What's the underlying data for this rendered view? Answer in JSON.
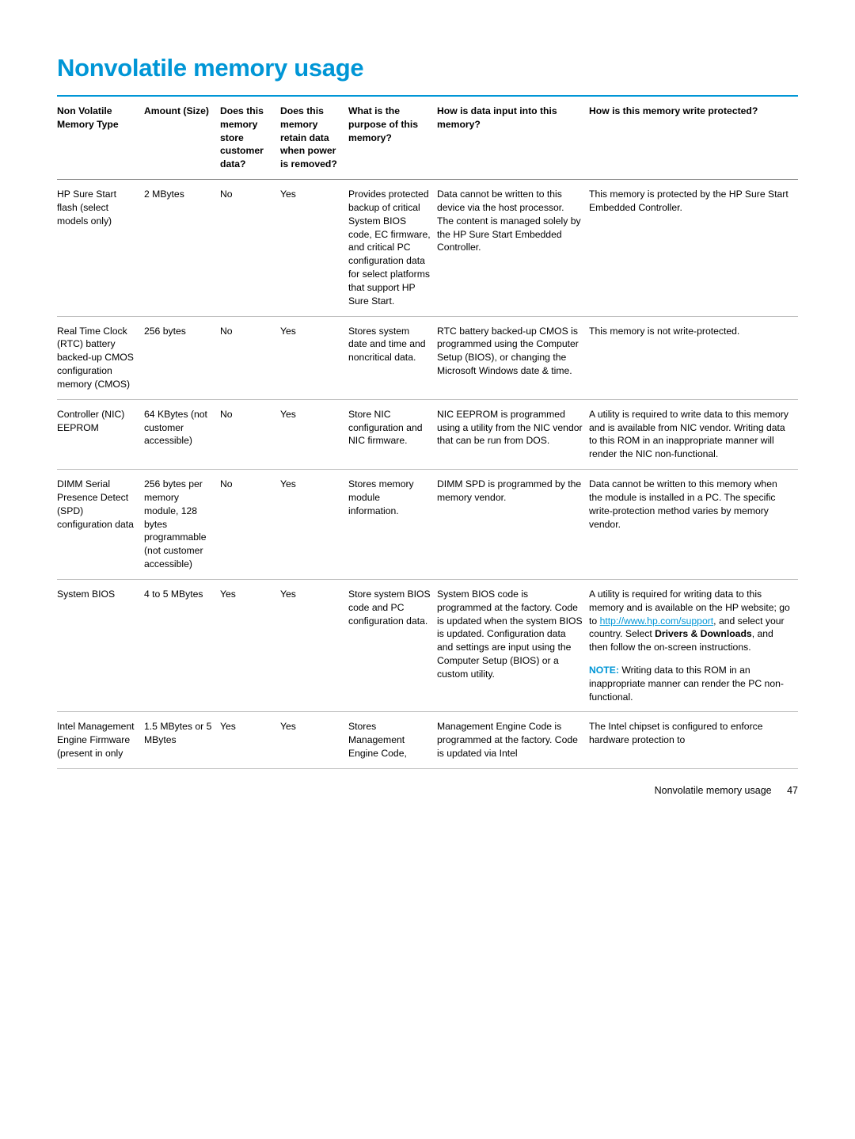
{
  "page": {
    "title": "Nonvolatile memory usage",
    "footer_section": "Nonvolatile memory usage",
    "footer_page": "47"
  },
  "table": {
    "headers": {
      "c1": "Non Volatile Memory Type",
      "c2": "Amount (Size)",
      "c3": "Does this memory store customer data?",
      "c4": "Does this memory retain data when power is removed?",
      "c5": "What is the purpose of this memory?",
      "c6": "How is data input into this memory?",
      "c7": "How is this memory write protected?"
    },
    "rows": [
      {
        "c1": "HP Sure Start flash (select models only)",
        "c2": "2 MBytes",
        "c3": "No",
        "c4": "Yes",
        "c5": "Provides protected backup of critical System BIOS code, EC firmware, and critical PC configuration data for select platforms that support HP Sure Start.",
        "c6": "Data cannot be written to this device via the host processor. The content is managed solely by the HP Sure Start Embedded Controller.",
        "c7": "This memory is protected by the HP Sure Start Embedded Controller."
      },
      {
        "c1": "Real Time Clock (RTC) battery backed-up CMOS configuration memory (CMOS)",
        "c2": "256 bytes",
        "c3": "No",
        "c4": "Yes",
        "c5": "Stores system date and time and noncritical data.",
        "c6": "RTC battery backed-up CMOS is programmed using the Computer Setup (BIOS), or changing the Microsoft Windows date & time.",
        "c7": "This memory is not write-protected."
      },
      {
        "c1": "Controller (NIC) EEPROM",
        "c2": "64 KBytes (not customer accessible)",
        "c3": "No",
        "c4": "Yes",
        "c5": "Store NIC configuration and NIC firmware.",
        "c6": "NIC EEPROM is programmed using a utility from the NIC vendor that can be run from DOS.",
        "c7": "A utility is required to write data to this memory and is available from NIC vendor. Writing data to this ROM in an inappropriate manner will render the NIC non-functional."
      },
      {
        "c1": "DIMM Serial Presence Detect (SPD) configuration data",
        "c2": "256 bytes per memory module, 128 bytes programmable (not customer accessible)",
        "c3": "No",
        "c4": "Yes",
        "c5": "Stores memory module information.",
        "c6": "DIMM SPD is programmed by the memory vendor.",
        "c7": "Data cannot be written to this memory when the module is installed in a PC. The specific write-protection method varies by memory vendor."
      },
      {
        "c1": "System BIOS",
        "c2": "4 to 5 MBytes",
        "c3": "Yes",
        "c4": "Yes",
        "c5": "Store system BIOS code and PC configuration data.",
        "c6": "System BIOS code is programmed at the factory. Code is updated when the system BIOS is updated. Configuration data and settings are input using the Computer Setup (BIOS) or a custom utility.",
        "c7_pre": "A utility is required for writing data to this memory and is available on the HP website; go to ",
        "c7_link1_text": "http://www.hp.com/support",
        "c7_mid1": ", and select your country. Select ",
        "c7_b1": "Drivers & Downloads",
        "c7_mid2": ", and then follow the on-screen instructions.",
        "c7_note_label": "NOTE:",
        "c7_note_text": "Writing data to this ROM in an inappropriate manner can render the PC non-functional."
      },
      {
        "c1": "Intel Management Engine Firmware (present in only",
        "c2": "1.5 MBytes or 5 MBytes",
        "c3": "Yes",
        "c4": "Yes",
        "c5": "Stores Management Engine Code,",
        "c6": "Management Engine Code is programmed at the factory. Code is updated via Intel",
        "c7": "The Intel chipset is configured to enforce hardware protection to"
      }
    ]
  }
}
